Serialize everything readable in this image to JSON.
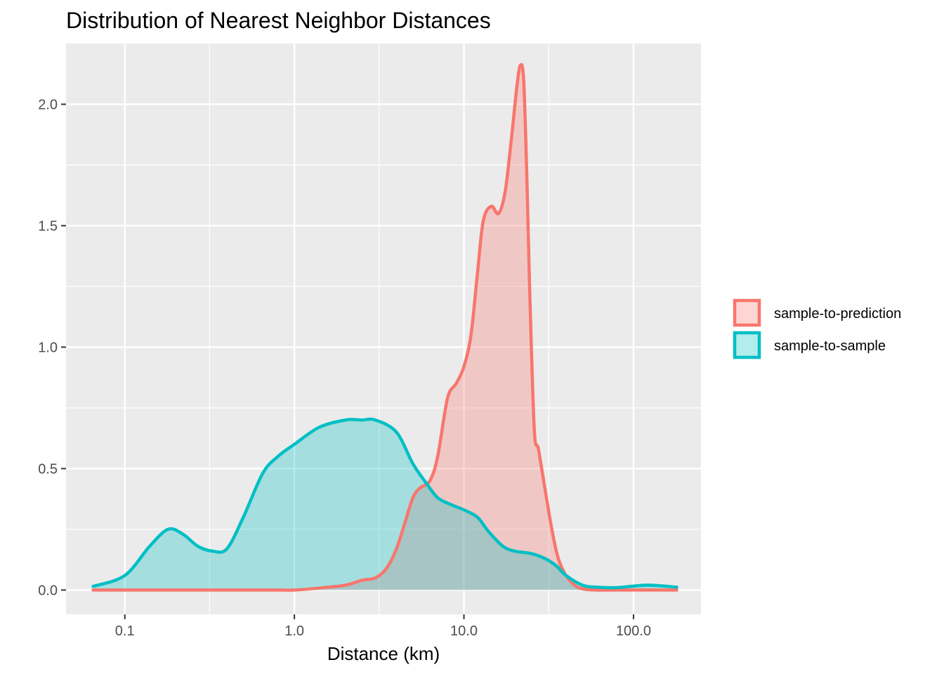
{
  "chart_data": {
    "type": "area",
    "title": "Distribution of Nearest Neighbor Distances",
    "xlabel": "Distance (km)",
    "ylabel": "",
    "x_scale": "log10",
    "xlim": [
      0.045,
      250
    ],
    "ylim": [
      -0.1,
      2.25
    ],
    "x_ticks": [
      0.1,
      1,
      10,
      100
    ],
    "x_tick_labels": [
      "0.1",
      "1.0",
      "10.0",
      "100.0"
    ],
    "y_ticks": [
      0,
      0.5,
      1,
      1.5,
      2
    ],
    "y_tick_labels": [
      "0.0",
      "0.5",
      "1.0",
      "1.5",
      "2.0"
    ],
    "grid": true,
    "legend_position": "right",
    "series": [
      {
        "name": "sample-to-prediction",
        "color": "#F8766D",
        "x": [
          0.065,
          0.1,
          0.3,
          0.8,
          1.0,
          1.5,
          2.0,
          2.5,
          3.0,
          3.5,
          4.0,
          4.5,
          5.0,
          5.5,
          6.3,
          7.0,
          8.0,
          9.0,
          10.0,
          11.0,
          12.0,
          13.0,
          14.5,
          16.0,
          17.5,
          19.0,
          20.5,
          21.5,
          22.5,
          23.5,
          24.5,
          26.0,
          27.5,
          30.0,
          33.0,
          36.0,
          40.0,
          45.0,
          50.0,
          60.0,
          80.0,
          100.0,
          180.0
        ],
        "y": [
          0.0,
          0.0,
          0.0,
          0.0,
          0.0,
          0.01,
          0.02,
          0.04,
          0.05,
          0.09,
          0.17,
          0.28,
          0.38,
          0.42,
          0.45,
          0.55,
          0.79,
          0.85,
          0.92,
          1.05,
          1.3,
          1.52,
          1.58,
          1.55,
          1.64,
          1.85,
          2.07,
          2.16,
          2.1,
          1.7,
          1.2,
          0.66,
          0.58,
          0.42,
          0.25,
          0.13,
          0.06,
          0.02,
          0.005,
          0.0,
          0.0,
          0.0,
          0.0
        ]
      },
      {
        "name": "sample-to-sample",
        "color": "#00BFC4",
        "x": [
          0.065,
          0.1,
          0.14,
          0.18,
          0.22,
          0.27,
          0.33,
          0.4,
          0.5,
          0.65,
          0.8,
          1.0,
          1.4,
          2.0,
          2.5,
          3.0,
          4.0,
          5.0,
          6.0,
          7.0,
          8.5,
          10.0,
          12.0,
          14.0,
          17.0,
          20.0,
          25.0,
          30.0,
          35.0,
          40.0,
          50.0,
          60.0,
          80.0,
          120.0,
          180.0
        ],
        "y": [
          0.015,
          0.06,
          0.18,
          0.25,
          0.23,
          0.18,
          0.16,
          0.17,
          0.3,
          0.48,
          0.55,
          0.6,
          0.67,
          0.7,
          0.7,
          0.7,
          0.65,
          0.52,
          0.44,
          0.38,
          0.35,
          0.33,
          0.3,
          0.24,
          0.18,
          0.16,
          0.15,
          0.13,
          0.1,
          0.06,
          0.02,
          0.012,
          0.01,
          0.02,
          0.012
        ]
      }
    ]
  }
}
